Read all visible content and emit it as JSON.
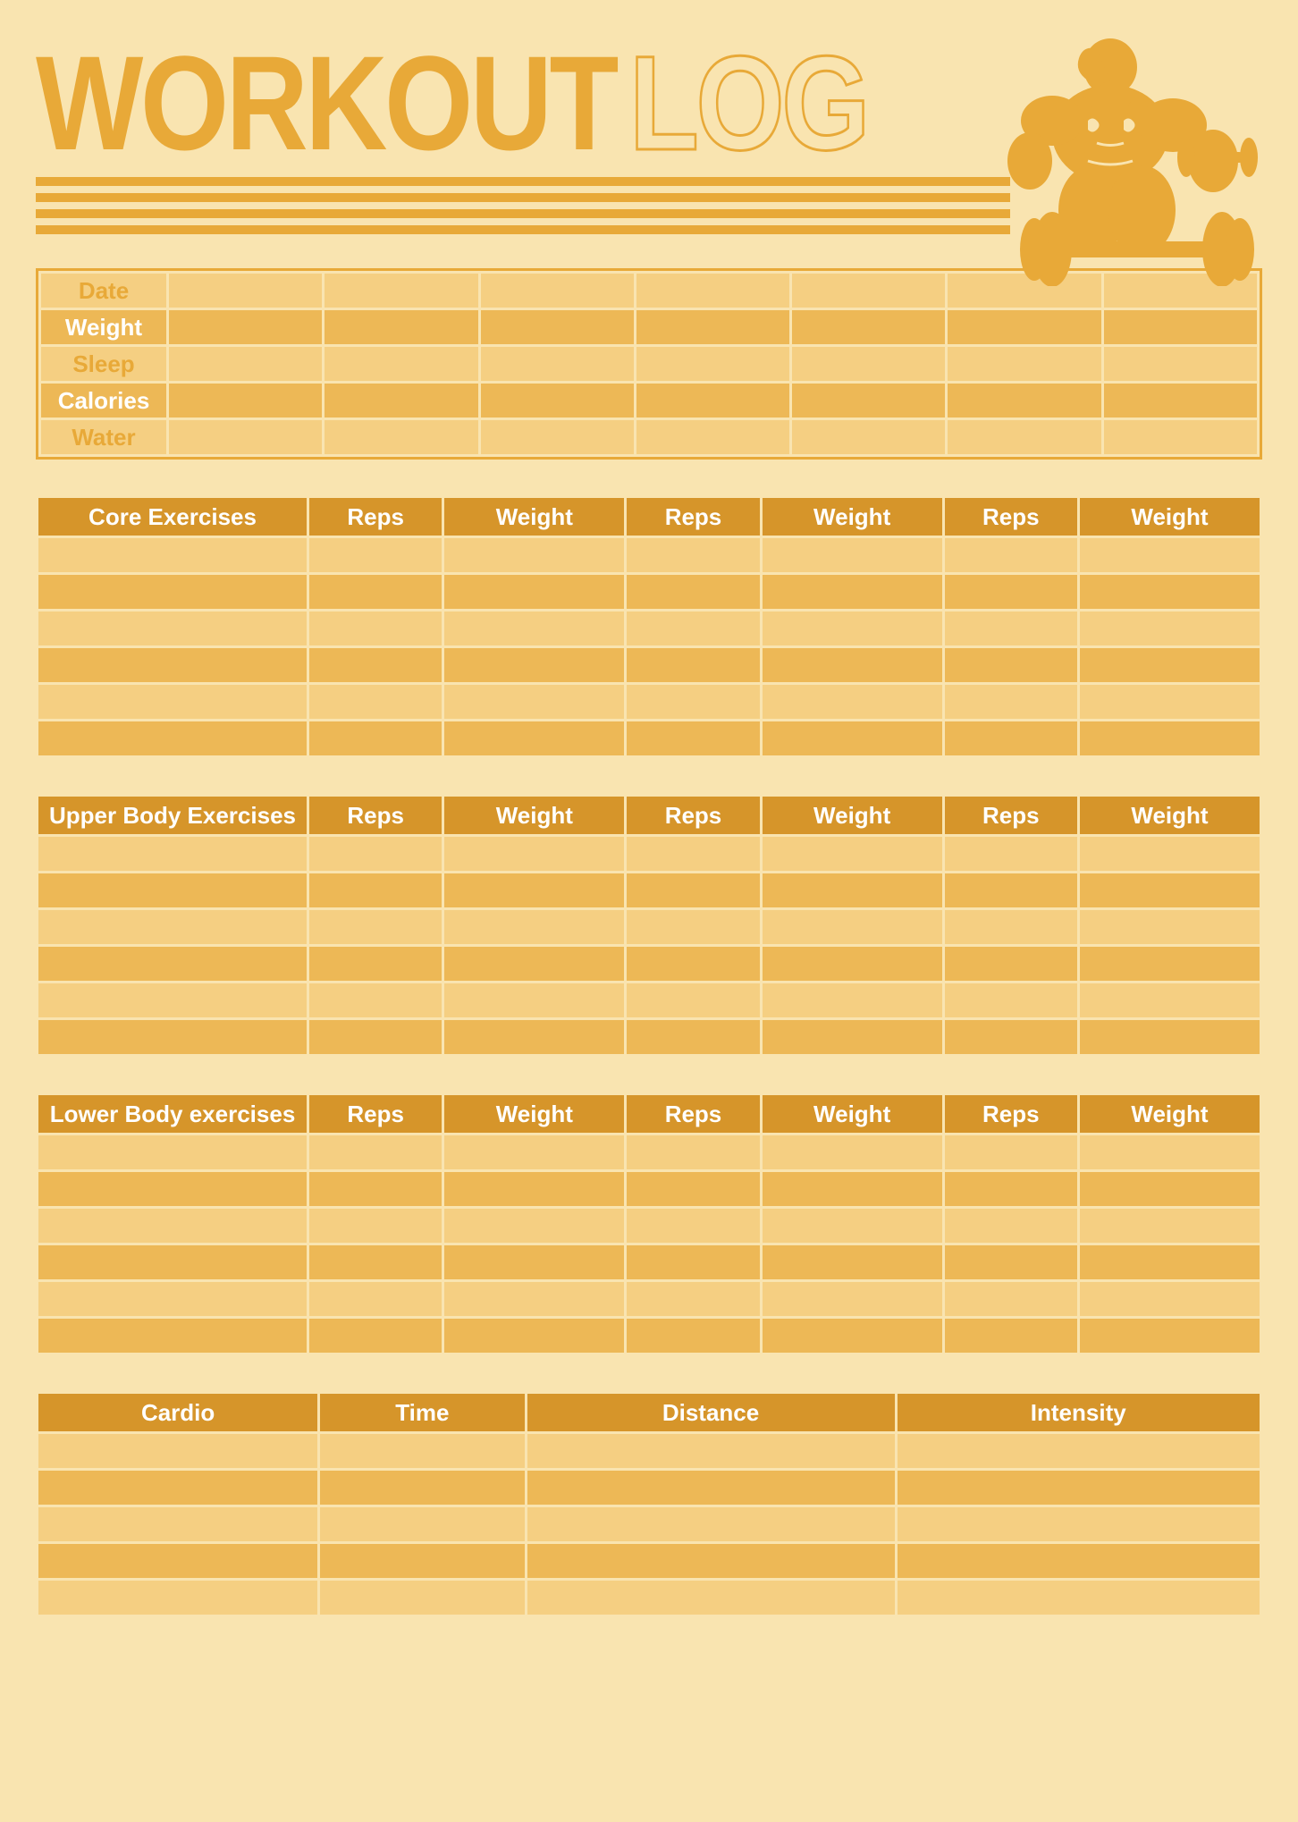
{
  "colors": {
    "page_bg": "#f9e4b0",
    "accent": "#e8a938",
    "accent_dark": "#d89b2e",
    "row_light": "#f5cf82",
    "row_dark": "#edb856",
    "header_row": "#d6952a",
    "text_white": "#ffffff",
    "text_accent": "#e8a938",
    "stripe": "#e8a938",
    "border": "#e8a938"
  },
  "title": {
    "solid": "WORKOUT",
    "outline": "LOG"
  },
  "tracking": {
    "rows": [
      {
        "label": "Date",
        "text_color": "accent",
        "bg": "light"
      },
      {
        "label": "Weight",
        "text_color": "white",
        "bg": "dark"
      },
      {
        "label": "Sleep",
        "text_color": "accent",
        "bg": "light"
      },
      {
        "label": "Calories",
        "text_color": "white",
        "bg": "dark"
      },
      {
        "label": "Water",
        "text_color": "accent",
        "bg": "light"
      }
    ],
    "day_columns": 7
  },
  "exercise_sections": [
    {
      "title": "Core Exercises",
      "columns": [
        "Reps",
        "Weight",
        "Reps",
        "Weight",
        "Reps",
        "Weight"
      ],
      "rows": 6
    },
    {
      "title": "Upper Body Exercises",
      "columns": [
        "Reps",
        "Weight",
        "Reps",
        "Weight",
        "Reps",
        "Weight"
      ],
      "rows": 6
    },
    {
      "title": "Lower Body exercises",
      "columns": [
        "Reps",
        "Weight",
        "Reps",
        "Weight",
        "Reps",
        "Weight"
      ],
      "rows": 6
    }
  ],
  "cardio": {
    "columns": [
      "Cardio",
      "Time",
      "Distance",
      "Intensity"
    ],
    "rows": 5
  }
}
